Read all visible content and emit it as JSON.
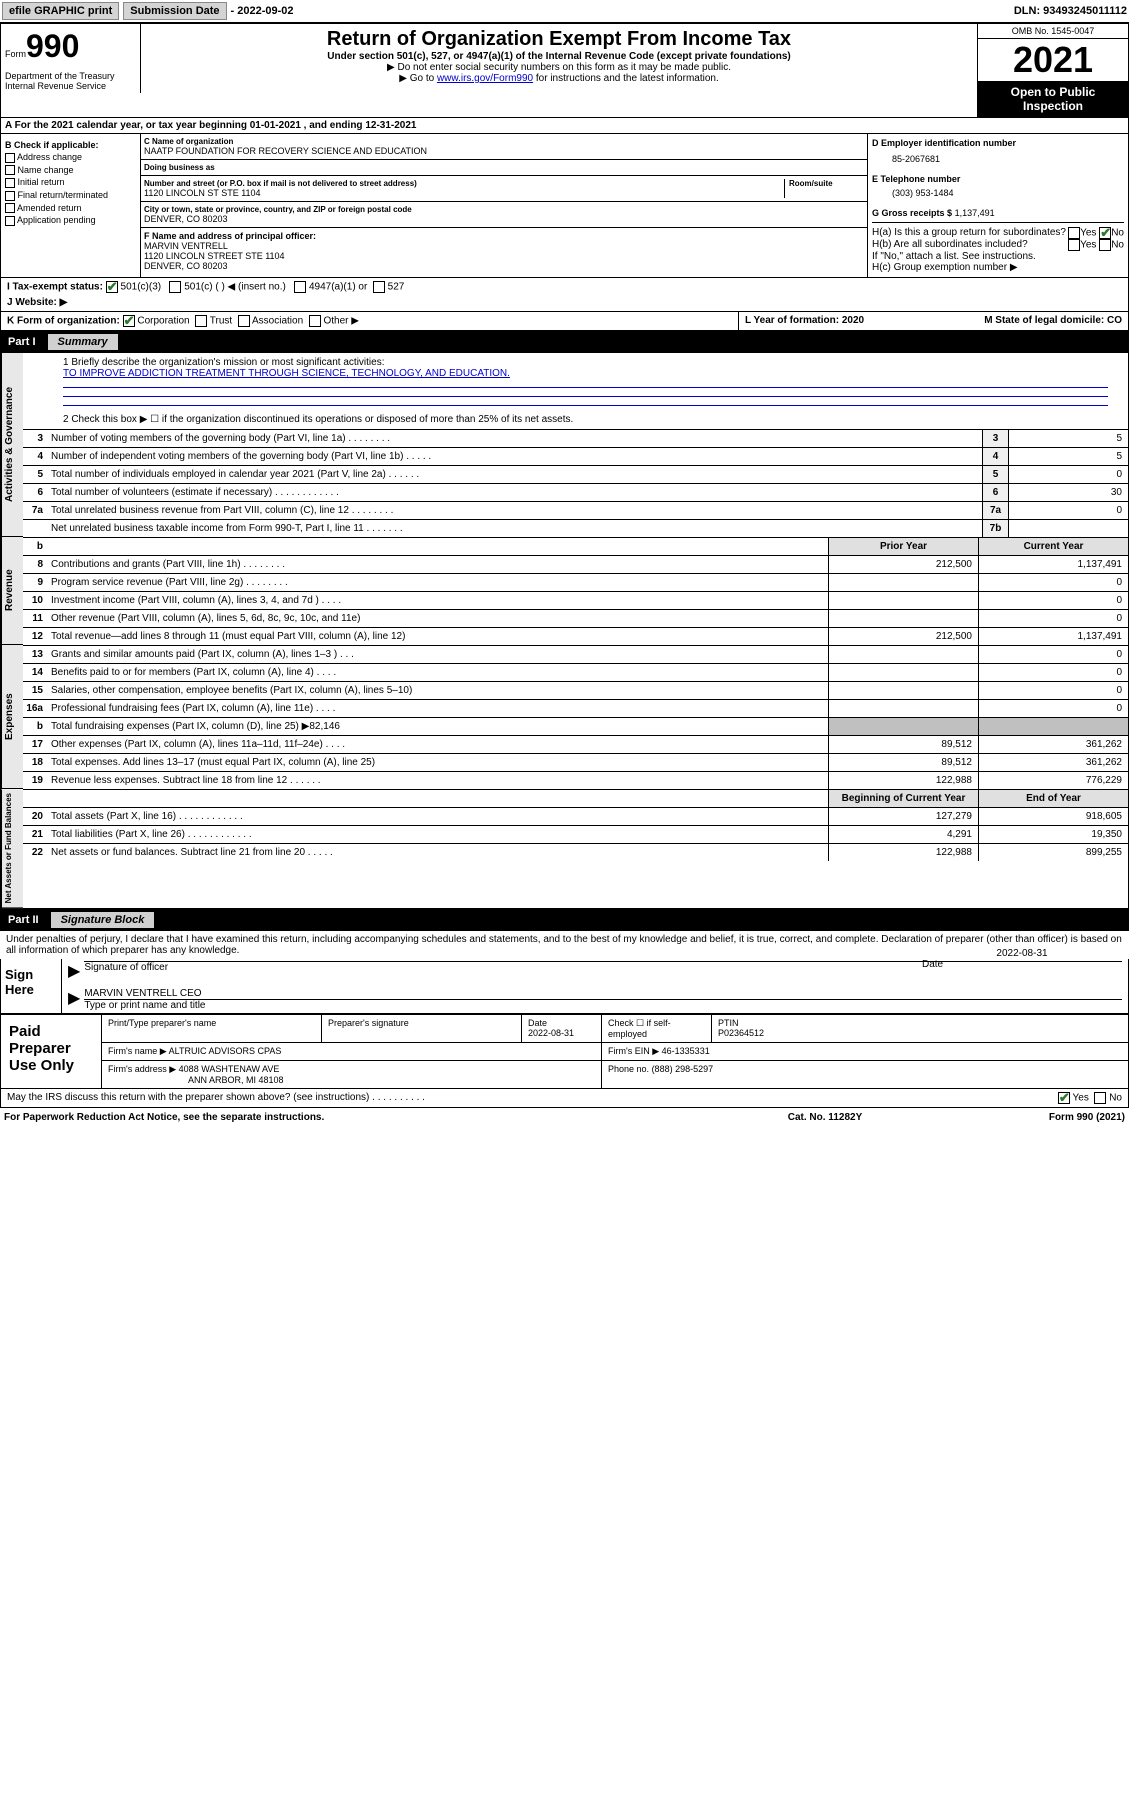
{
  "topbar": {
    "efile": "efile GRAPHIC print",
    "subdate_lbl": "Submission Date",
    "subdate": "- 2022-09-02",
    "dln": "DLN: 93493245011112"
  },
  "header": {
    "form_sm": "Form",
    "form_big": "990",
    "dept": "Department of the Treasury\nInternal Revenue Service",
    "title": "Return of Organization Exempt From Income Tax",
    "sub1": "Under section 501(c), 527, or 4947(a)(1) of the Internal Revenue Code (except private foundations)",
    "sub2": "▶ Do not enter social security numbers on this form as it may be made public.",
    "sub3_pre": "▶ Go to ",
    "sub3_link": "www.irs.gov/Form990",
    "sub3_post": " for instructions and the latest information.",
    "omb": "OMB No. 1545-0047",
    "year": "2021",
    "insp": "Open to Public Inspection"
  },
  "rowA": "A For the 2021 calendar year, or tax year beginning 01-01-2021    , and ending 12-31-2021",
  "colB": {
    "hdr": "B Check if applicable:",
    "items": [
      "Address change",
      "Name change",
      "Initial return",
      "Final return/terminated",
      "Amended return",
      "Application pending"
    ]
  },
  "colC": {
    "c_lbl": "C Name of organization",
    "c_name": "NAATP FOUNDATION FOR RECOVERY SCIENCE AND EDUCATION",
    "dba_lbl": "Doing business as",
    "dba": "",
    "addr_lbl": "Number and street (or P.O. box if mail is not delivered to street address)",
    "room_lbl": "Room/suite",
    "addr": "1120 LINCOLN ST STE 1104",
    "city_lbl": "City or town, state or province, country, and ZIP or foreign postal code",
    "city": "DENVER, CO  80203",
    "f_lbl": "F Name and address of principal officer:",
    "f_name": "MARVIN VENTRELL",
    "f_addr1": "1120 LINCOLN STREET STE 1104",
    "f_addr2": "DENVER, CO  80203"
  },
  "colD": {
    "d_lbl": "D Employer identification number",
    "d_val": "85-2067681",
    "e_lbl": "E Telephone number",
    "e_val": "(303) 953-1484",
    "g_lbl": "G Gross receipts $",
    "g_val": "1,137,491",
    "ha": "H(a)  Is this a group return for subordinates?",
    "hb": "H(b)  Are all subordinates included?",
    "h_note": "If \"No,\" attach a list. See instructions.",
    "hc": "H(c)  Group exemption number ▶"
  },
  "rowI": {
    "lbl": "I    Tax-exempt status:",
    "o1": "501(c)(3)",
    "o2": "501(c) (   ) ◀ (insert no.)",
    "o3": "4947(a)(1) or",
    "o4": "527"
  },
  "rowJ": "J    Website: ▶",
  "rowK": {
    "lbl": "K Form of organization:",
    "o1": "Corporation",
    "o2": "Trust",
    "o3": "Association",
    "o4": "Other ▶",
    "l": "L Year of formation: 2020",
    "m": "M State of legal domicile: CO"
  },
  "part1": {
    "hdr_n": "Part I",
    "hdr_t": "Summary",
    "line1_lbl": "1   Briefly describe the organization's mission or most significant activities:",
    "line1_txt": "TO IMPROVE ADDICTION TREATMENT THROUGH SCIENCE, TECHNOLOGY, AND EDUCATION.",
    "line2": "2   Check this box ▶ ☐  if the organization discontinued its operations or disposed of more than 25% of its net assets.",
    "gov_rows": [
      {
        "n": "3",
        "t": "Number of voting members of the governing body (Part VI, line 1a)   .    .    .    .    .    .    .    .",
        "bn": "3",
        "v": "5"
      },
      {
        "n": "4",
        "t": "Number of independent voting members of the governing body (Part VI, line 1b)  .    .    .    .    .",
        "bn": "4",
        "v": "5"
      },
      {
        "n": "5",
        "t": "Total number of individuals employed in calendar year 2021 (Part V, line 2a)  .    .    .    .    .    .",
        "bn": "5",
        "v": "0"
      },
      {
        "n": "6",
        "t": "Total number of volunteers (estimate if necessary)   .    .    .    .    .    .    .    .    .    .    .    .",
        "bn": "6",
        "v": "30"
      },
      {
        "n": "7a",
        "t": "Total unrelated business revenue from Part VIII, column (C), line 12   .    .    .    .    .    .    .    .",
        "bn": "7a",
        "v": "0"
      },
      {
        "n": "",
        "t": "Net unrelated business taxable income from Form 990-T, Part I, line 11   .    .    .    .    .    .    .",
        "bn": "7b",
        "v": ""
      }
    ],
    "col_hdrs": {
      "b": "b",
      "prior": "Prior Year",
      "current": "Current Year"
    },
    "rev_rows": [
      {
        "n": "8",
        "t": "Contributions and grants (Part VIII, line 1h)   .    .    .    .    .    .    .    .",
        "p": "212,500",
        "c": "1,137,491"
      },
      {
        "n": "9",
        "t": "Program service revenue (Part VIII, line 2g)   .    .    .    .    .    .    .    .",
        "p": "",
        "c": "0"
      },
      {
        "n": "10",
        "t": "Investment income (Part VIII, column (A), lines 3, 4, and 7d )   .    .    .    .",
        "p": "",
        "c": "0"
      },
      {
        "n": "11",
        "t": "Other revenue (Part VIII, column (A), lines 5, 6d, 8c, 9c, 10c, and 11e)",
        "p": "",
        "c": "0"
      },
      {
        "n": "12",
        "t": "Total revenue—add lines 8 through 11 (must equal Part VIII, column (A), line 12)",
        "p": "212,500",
        "c": "1,137,491"
      }
    ],
    "exp_rows": [
      {
        "n": "13",
        "t": "Grants and similar amounts paid (Part IX, column (A), lines 1–3 )   .    .    .",
        "p": "",
        "c": "0"
      },
      {
        "n": "14",
        "t": "Benefits paid to or for members (Part IX, column (A), line 4)   .    .    .    .",
        "p": "",
        "c": "0"
      },
      {
        "n": "15",
        "t": "Salaries, other compensation, employee benefits (Part IX, column (A), lines 5–10)",
        "p": "",
        "c": "0"
      },
      {
        "n": "16a",
        "t": "Professional fundraising fees (Part IX, column (A), line 11e)   .    .    .    .",
        "p": "",
        "c": "0"
      },
      {
        "n": "b",
        "t": "Total fundraising expenses (Part IX, column (D), line 25) ▶82,146",
        "p": "grey",
        "c": "grey"
      },
      {
        "n": "17",
        "t": "Other expenses (Part IX, column (A), lines 11a–11d, 11f–24e)   .    .    .    .",
        "p": "89,512",
        "c": "361,262"
      },
      {
        "n": "18",
        "t": "Total expenses. Add lines 13–17 (must equal Part IX, column (A), line 25)",
        "p": "89,512",
        "c": "361,262"
      },
      {
        "n": "19",
        "t": "Revenue less expenses. Subtract line 18 from line 12   .    .    .    .    .    .",
        "p": "122,988",
        "c": "776,229"
      }
    ],
    "na_hdrs": {
      "beg": "Beginning of Current Year",
      "end": "End of Year"
    },
    "na_rows": [
      {
        "n": "20",
        "t": "Total assets (Part X, line 16)   .    .    .    .    .    .    .    .    .    .    .    .",
        "p": "127,279",
        "c": "918,605"
      },
      {
        "n": "21",
        "t": "Total liabilities (Part X, line 26)   .    .    .    .    .    .    .    .    .    .    .    .",
        "p": "4,291",
        "c": "19,350"
      },
      {
        "n": "22",
        "t": "Net assets or fund balances. Subtract line 21 from line 20   .    .    .    .    .",
        "p": "122,988",
        "c": "899,255"
      }
    ]
  },
  "part2": {
    "hdr_n": "Part II",
    "hdr_t": "Signature Block",
    "decl": "Under penalties of perjury, I declare that I have examined this return, including accompanying schedules and statements, and to the best of my knowledge and belief, it is true, correct, and complete. Declaration of preparer (other than officer) is based on all information of which preparer has any knowledge.",
    "sign_lbl": "Sign Here",
    "sig_off_lbl": "Signature of officer",
    "sig_date_lbl": "Date",
    "sig_date": "2022-08-31",
    "sig_name": "MARVIN VENTRELL CEO",
    "sig_name_lbl": "Type or print name and title",
    "prep_lbl": "Paid Preparer Use Only",
    "prep_hdrs": [
      "Print/Type preparer's name",
      "Preparer's signature",
      "Date",
      "Check ☐ if self-employed",
      "PTIN"
    ],
    "prep_date": "2022-08-31",
    "prep_ptin": "P02364512",
    "firm_name_lbl": "Firm's name     ▶",
    "firm_name": "ALTRUIC ADVISORS CPAS",
    "firm_ein_lbl": "Firm's EIN ▶",
    "firm_ein": "46-1335331",
    "firm_addr_lbl": "Firm's address ▶",
    "firm_addr1": "4088 WASHTENAW AVE",
    "firm_addr2": "ANN ARBOR, MI  48108",
    "firm_phone_lbl": "Phone no.",
    "firm_phone": "(888) 298-5297",
    "discuss": "May the IRS discuss this return with the preparer shown above? (see instructions)   .    .    .    .    .    .    .    .    .    .",
    "yes": "Yes",
    "no": "No"
  },
  "footer": {
    "l": "For Paperwork Reduction Act Notice, see the separate instructions.",
    "c": "Cat. No. 11282Y",
    "r": "Form 990 (2021)"
  }
}
